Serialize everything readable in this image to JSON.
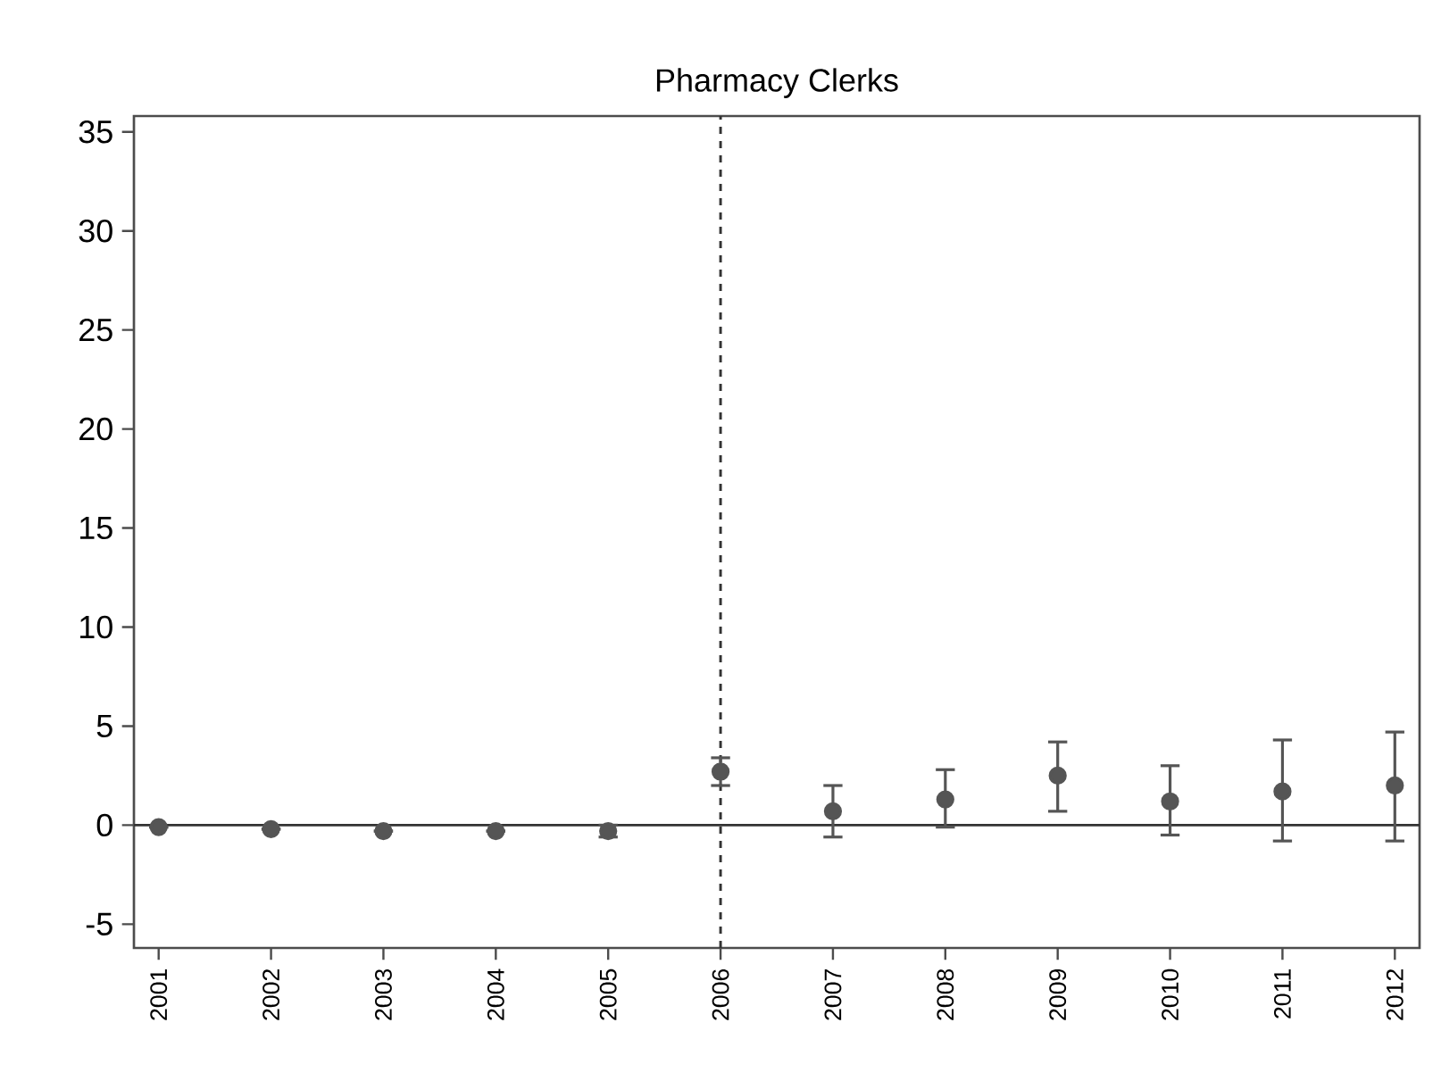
{
  "chart_data": {
    "type": "scatter",
    "title": "Pharmacy Clerks",
    "categories": [
      "2001",
      "2002",
      "2003",
      "2004",
      "2005",
      "2006",
      "2007",
      "2008",
      "2009",
      "2010",
      "2011",
      "2012"
    ],
    "values": [
      -0.1,
      -0.2,
      -0.3,
      -0.3,
      -0.3,
      2.7,
      0.7,
      1.3,
      2.5,
      1.2,
      1.7,
      2.0
    ],
    "errors": [
      null,
      null,
      null,
      null,
      [
        -0.6,
        0
      ],
      [
        2.0,
        3.4
      ],
      [
        -0.6,
        2.0
      ],
      [
        -0.1,
        2.8
      ],
      [
        0.7,
        4.2
      ],
      [
        -0.5,
        3.0
      ],
      [
        -0.8,
        4.3
      ],
      [
        -0.8,
        4.7
      ]
    ],
    "color": "#555555",
    "marker": "circle",
    "ylim": [
      -6.2,
      35.8
    ],
    "yticks": [
      -5,
      0,
      5,
      10,
      15,
      20,
      25,
      30,
      35
    ],
    "ref_lines": [
      {
        "axis": "y",
        "value": 0,
        "line_style": "solid",
        "color": "#333333"
      },
      {
        "axis": "x",
        "value": "2006",
        "line_style": "dashed",
        "color": "#333333"
      }
    ],
    "grid": false
  }
}
